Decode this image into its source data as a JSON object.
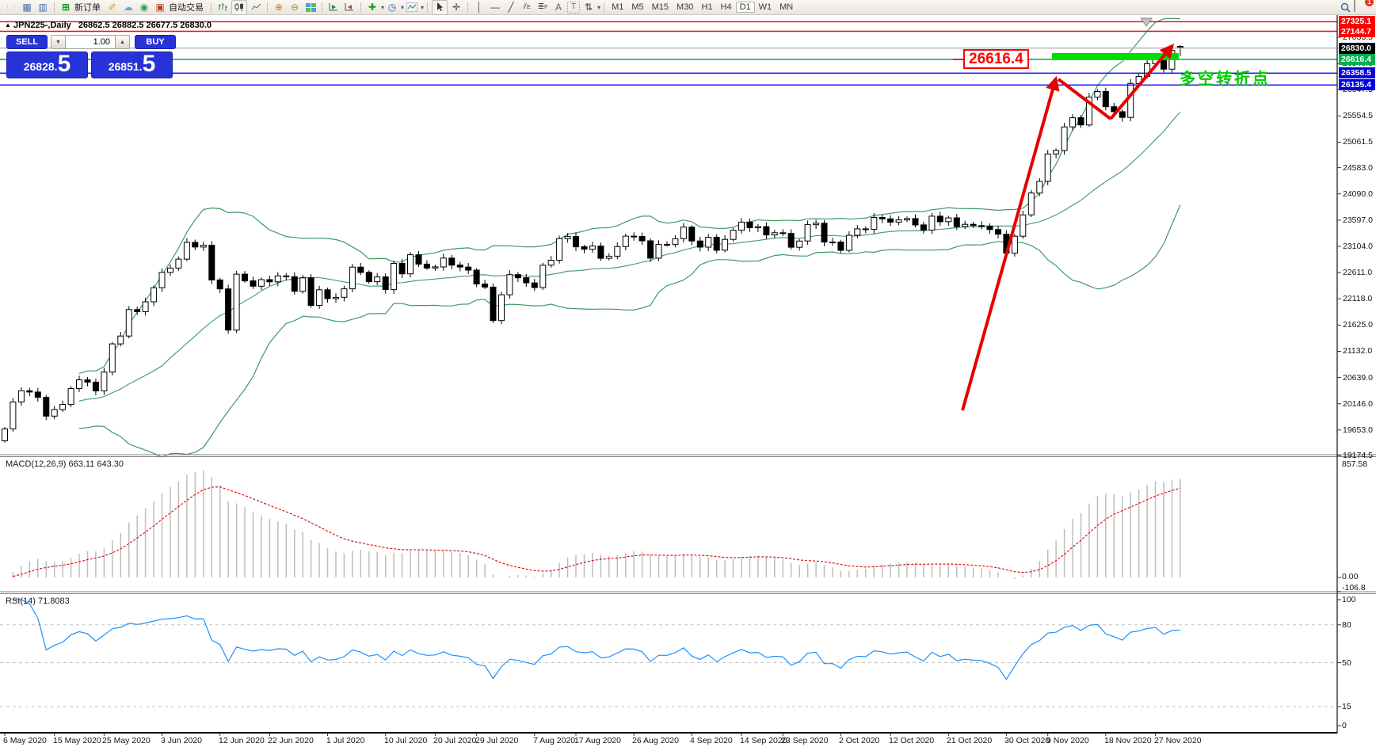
{
  "toolbar": {
    "new_order_label": "新订单",
    "auto_trading_label": "自动交易",
    "timeframes": [
      "M1",
      "M5",
      "M15",
      "M30",
      "H1",
      "H4",
      "D1",
      "W1",
      "MN"
    ],
    "active_timeframe": "D1",
    "notification_badge": "1"
  },
  "chart_header": {
    "symbol": "JPN225-,Daily",
    "ohlc_text": "26862.5 26882.5 26677.5 26830.0"
  },
  "trade_panel": {
    "sell_label": "SELL",
    "buy_label": "BUY",
    "volume": "1.00",
    "sell_price_main": "26828",
    "sell_price_frac": "5",
    "buy_price_main": "26851",
    "buy_price_frac": "5"
  },
  "price_axis": {
    "flags": [
      {
        "price": "27325.1",
        "value": 27325.1,
        "color": "#ff0000"
      },
      {
        "price": "27144.7",
        "value": 27144.7,
        "color": "#ff0000"
      },
      {
        "price": "26830.0",
        "value": 26830.0,
        "color": "#000000"
      },
      {
        "price": "26616.4",
        "value": 26616.4,
        "color": "#00b050"
      },
      {
        "price": "26358.5",
        "value": 26358.5,
        "color": "#0000dd"
      },
      {
        "price": "26135.4",
        "value": 26135.4,
        "color": "#0000dd"
      }
    ],
    "ticks": [
      "27033.5",
      "26540.5",
      "26047.5",
      "25554.5",
      "25061.5",
      "24583.0",
      "24090.0",
      "23597.0",
      "23104.0",
      "22611.0",
      "22118.0",
      "21625.0",
      "21132.0",
      "20639.0",
      "20146.0",
      "19653.0",
      "19174.5"
    ]
  },
  "macd_pane": {
    "label": "MACD(12,26,9) 663.11 643.30",
    "scale_top": "857.58",
    "scale_zero": "0.00",
    "scale_bottom": "-106.8"
  },
  "rsi_pane": {
    "label": "RSI(14) 71.8083",
    "scale": [
      "100",
      "80",
      "50",
      "15",
      "0"
    ],
    "level_lines": [
      80,
      50,
      15
    ]
  },
  "date_axis": [
    {
      "label": "6 May 2020",
      "i": 0
    },
    {
      "label": "15 May 2020",
      "i": 6
    },
    {
      "label": "25 May 2020",
      "i": 12
    },
    {
      "label": "3 Jun 2020",
      "i": 19
    },
    {
      "label": "12 Jun 2020",
      "i": 26
    },
    {
      "label": "22 Jun 2020",
      "i": 32
    },
    {
      "label": "1 Jul 2020",
      "i": 39
    },
    {
      "label": "10 Jul 2020",
      "i": 46
    },
    {
      "label": "20 Jul 2020",
      "i": 52
    },
    {
      "label": "29 Jul 2020",
      "i": 57
    },
    {
      "label": "7 Aug 2020",
      "i": 64
    },
    {
      "label": "17 Aug 2020",
      "i": 69
    },
    {
      "label": "26 Aug 2020",
      "i": 76
    },
    {
      "label": "4 Sep 2020",
      "i": 83
    },
    {
      "label": "14 Sep 2020",
      "i": 89
    },
    {
      "label": "23 Sep 2020",
      "i": 94
    },
    {
      "label": "2 Oct 2020",
      "i": 101
    },
    {
      "label": "12 Oct 2020",
      "i": 107
    },
    {
      "label": "21 Oct 2020",
      "i": 114
    },
    {
      "label": "30 Oct 2020",
      "i": 121
    },
    {
      "label": "9 Nov 2020",
      "i": 126
    },
    {
      "label": "18 Nov 2020",
      "i": 133
    },
    {
      "label": "27 Nov 2020",
      "i": 139
    }
  ],
  "annotations": {
    "price_callout": "26616.4",
    "turning_point": "多空转折点",
    "support_bar_color": "#00dd00",
    "arrow_color": "#e60000"
  },
  "chart_data": {
    "type": "candlestick",
    "symbol": "JPN225-",
    "timeframe": "Daily",
    "ylim": [
      19174.5,
      27430
    ],
    "first_open": 19450,
    "closes": [
      19675,
      20180,
      20390,
      20366,
      20267,
      19914,
      20037,
      20133,
      20433,
      20595,
      20552,
      20388,
      20741,
      21271,
      21419,
      21916,
      21878,
      22062,
      22326,
      22614,
      22696,
      22864,
      23178,
      23091,
      23125,
      22473,
      22305,
      21531,
      22582,
      22456,
      22355,
      22479,
      22437,
      22549,
      22534,
      22260,
      22512,
      21995,
      22288,
      22122,
      22146,
      22306,
      22714,
      22615,
      22439,
      22529,
      22291,
      22784,
      22587,
      22946,
      22771,
      22697,
      22718,
      22884,
      22752,
      22715,
      22657,
      22397,
      22339,
      21710,
      22195,
      22573,
      22514,
      22418,
      22330,
      22750,
      22843,
      23249,
      23289,
      23096,
      23051,
      23110,
      22880,
      22920,
      23100,
      23296,
      23290,
      23208,
      22882,
      23139,
      23138,
      23247,
      23465,
      23205,
      23089,
      23274,
      23032,
      23235,
      23406,
      23559,
      23454,
      23475,
      23319,
      23360,
      23346,
      23087,
      23204,
      23511,
      23539,
      23185,
      23185,
      23029,
      23312,
      23433,
      23422,
      23647,
      23620,
      23559,
      23601,
      23627,
      23507,
      23411,
      23671,
      23567,
      23639,
      23474,
      23517,
      23494,
      23486,
      23419,
      23332,
      22977,
      23295,
      23695,
      24105,
      24325,
      24839,
      24906,
      25349,
      25521,
      25385,
      25907,
      26014,
      25728,
      25634,
      25527,
      26165,
      26297,
      26537,
      26645,
      26434,
      26787,
      26830
    ],
    "last_candle": {
      "open": 26862.5,
      "high": 26882.5,
      "low": 26677.5,
      "close": 26830.0
    },
    "overlays": [
      {
        "name": "Bollinger Bands",
        "period": 20,
        "deviation": 2,
        "color": "#3d9b64"
      }
    ],
    "indicators": [
      {
        "name": "MACD",
        "params": [
          12,
          26,
          9
        ],
        "value": 663.11,
        "signal": 643.3,
        "range": [
          -106.8,
          857.58
        ],
        "histogram_color": "#bdbdbd",
        "signal_color": "#dd0000"
      },
      {
        "name": "RSI",
        "params": [
          14
        ],
        "value": 71.8083,
        "range": [
          0,
          100
        ],
        "color": "#1e90ff"
      }
    ],
    "horizontal_levels": [
      {
        "price": 27325.1,
        "color": "#ff0000"
      },
      {
        "price": 27144.7,
        "color": "#ff0000"
      },
      {
        "price": 26830.0,
        "color": "#b4b4b4",
        "note": "current price"
      },
      {
        "price": 26616.4,
        "color": "#00a651",
        "note": "callout level"
      },
      {
        "price": 26358.5,
        "color": "#0000ff"
      },
      {
        "price": 26135.4,
        "color": "#0000ff"
      }
    ]
  }
}
